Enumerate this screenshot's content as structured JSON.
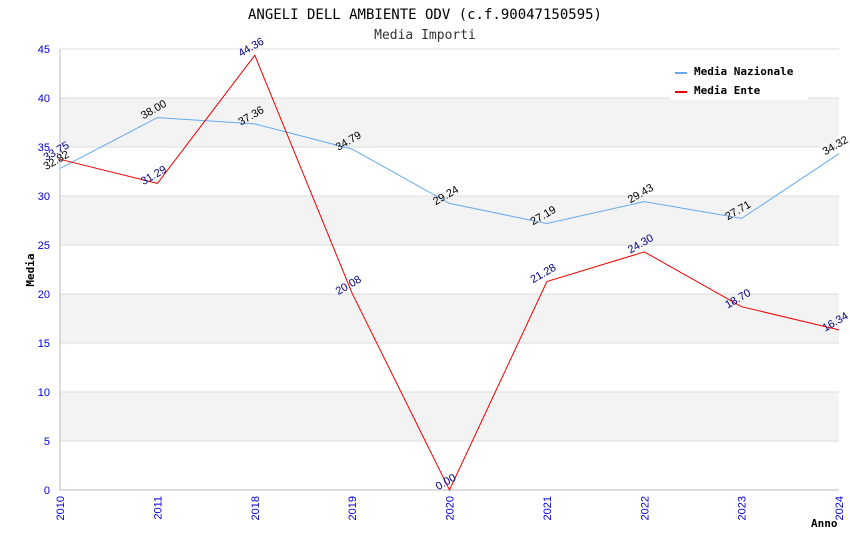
{
  "chart_data": {
    "type": "line",
    "title": "ANGELI DELL AMBIENTE ODV (c.f.90047150595)",
    "subtitle": "Media Importi",
    "xlabel": "Anno",
    "ylabel": "Media",
    "categories": [
      "2010",
      "2011",
      "2018",
      "2019",
      "2020",
      "2021",
      "2022",
      "2023",
      "2024"
    ],
    "ylim": [
      0,
      45
    ],
    "yticks": [
      0,
      5,
      10,
      15,
      20,
      25,
      30,
      35,
      40,
      45
    ],
    "legend_position": "top-right",
    "series": [
      {
        "name": "Media Nazionale",
        "color": "#66aaee",
        "label_color": "#000000",
        "values": [
          32.82,
          38.0,
          37.36,
          34.79,
          29.24,
          27.19,
          29.43,
          27.71,
          34.32
        ],
        "labels": [
          "32.82",
          "38.00",
          "37.36",
          "34.79",
          "29.24",
          "27.19",
          "29.43",
          "27.71",
          "34.32"
        ]
      },
      {
        "name": "Media Ente",
        "color": "#ee0000",
        "label_color": "#000080",
        "values": [
          33.75,
          31.29,
          44.36,
          20.08,
          0.0,
          21.28,
          24.3,
          18.7,
          16.34
        ],
        "labels": [
          "33.75",
          "31.29",
          "44.36",
          "20.08",
          "0.00",
          "21.28",
          "24.30",
          "18.70",
          "16.34"
        ]
      }
    ]
  }
}
